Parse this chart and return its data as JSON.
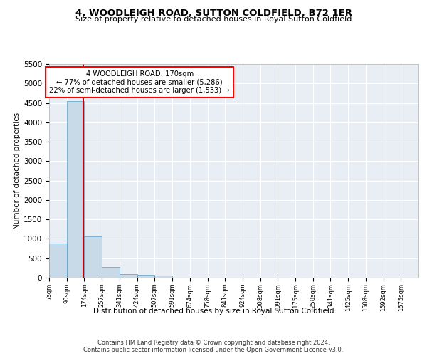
{
  "title": "4, WOODLEIGH ROAD, SUTTON COLDFIELD, B72 1ER",
  "subtitle": "Size of property relative to detached houses in Royal Sutton Coldfield",
  "xlabel": "Distribution of detached houses by size in Royal Sutton Coldfield",
  "ylabel": "Number of detached properties",
  "footer_line1": "Contains HM Land Registry data © Crown copyright and database right 2024.",
  "footer_line2": "Contains public sector information licensed under the Open Government Licence v3.0.",
  "annotation_line1": "4 WOODLEIGH ROAD: 170sqm",
  "annotation_line2": "← 77% of detached houses are smaller (5,286)",
  "annotation_line3": "22% of semi-detached houses are larger (1,533) →",
  "property_size": 170,
  "bar_color": "#c8d9e8",
  "bar_edge_color": "#5a9cc5",
  "property_line_color": "#cc0000",
  "background_color": "#e8eef4",
  "categories": [
    "7sqm",
    "90sqm",
    "174sqm",
    "257sqm",
    "341sqm",
    "424sqm",
    "507sqm",
    "591sqm",
    "674sqm",
    "758sqm",
    "841sqm",
    "924sqm",
    "1008sqm",
    "1091sqm",
    "1175sqm",
    "1258sqm",
    "1341sqm",
    "1425sqm",
    "1508sqm",
    "1592sqm",
    "1675sqm"
  ],
  "values": [
    880,
    4550,
    1060,
    280,
    85,
    75,
    50,
    0,
    0,
    0,
    0,
    0,
    0,
    0,
    0,
    0,
    0,
    0,
    0,
    0,
    0
  ],
  "bin_edges": [
    7,
    90,
    174,
    257,
    341,
    424,
    507,
    591,
    674,
    758,
    841,
    924,
    1008,
    1091,
    1175,
    1258,
    1341,
    1425,
    1508,
    1592,
    1675,
    1758
  ],
  "ylim": [
    0,
    5500
  ],
  "yticks": [
    0,
    500,
    1000,
    1500,
    2000,
    2500,
    3000,
    3500,
    4000,
    4500,
    5000,
    5500
  ]
}
